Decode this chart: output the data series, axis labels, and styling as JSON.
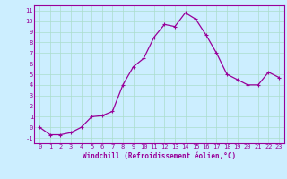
{
  "x": [
    0,
    1,
    2,
    3,
    4,
    5,
    6,
    7,
    8,
    9,
    10,
    11,
    12,
    13,
    14,
    15,
    16,
    17,
    18,
    19,
    20,
    21,
    22,
    23
  ],
  "y": [
    0.0,
    -0.7,
    -0.7,
    -0.5,
    0.0,
    1.0,
    1.1,
    1.5,
    4.0,
    5.7,
    6.5,
    8.5,
    9.7,
    9.5,
    10.8,
    10.2,
    8.7,
    7.0,
    5.0,
    4.5,
    4.0,
    4.0,
    5.2,
    4.7
  ],
  "line_color": "#990099",
  "marker": "+",
  "marker_size": 3,
  "marker_linewidth": 0.8,
  "line_width": 0.9,
  "bg_color": "#cceeff",
  "grid_color": "#aaddcc",
  "xlabel": "Windchill (Refroidissement éolien,°C)",
  "xlabel_fontsize": 5.5,
  "tick_fontsize": 5,
  "xlim": [
    -0.5,
    23.5
  ],
  "ylim": [
    -1.5,
    11.5
  ],
  "yticks": [
    -1,
    0,
    1,
    2,
    3,
    4,
    5,
    6,
    7,
    8,
    9,
    10,
    11
  ],
  "xticks": [
    0,
    1,
    2,
    3,
    4,
    5,
    6,
    7,
    8,
    9,
    10,
    11,
    12,
    13,
    14,
    15,
    16,
    17,
    18,
    19,
    20,
    21,
    22,
    23
  ],
  "spine_color": "#990099",
  "label_color": "#990099"
}
